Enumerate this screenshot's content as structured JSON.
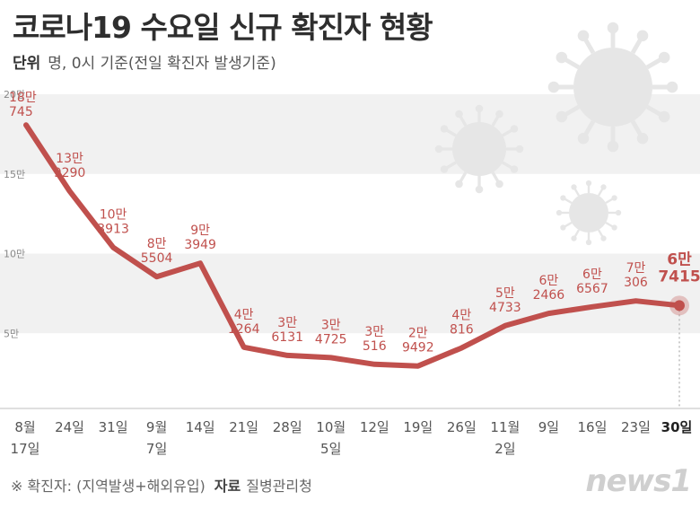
{
  "title": "코로나19 수요일 신규 확진자 현황",
  "unit": {
    "label": "단위",
    "text": "명, 0시 기준(전일 확진자 발생기준)"
  },
  "footer": {
    "note": "※ 확진자: (지역발생+해외유입)",
    "source_label": "자료",
    "source": "질병관리청"
  },
  "logo": "news1",
  "colors": {
    "line": "#c0504d",
    "last_label": "#c0504d",
    "label": "#c0504d",
    "band": "#f1f1f1",
    "virus": "#e6e6e6"
  },
  "chart_data": {
    "type": "line",
    "title": "코로나19 수요일 신규 확진자 현황",
    "ylim": [
      0,
      200000
    ],
    "yticks": [
      {
        "value": 50000,
        "label": "5만"
      },
      {
        "value": 100000,
        "label": "10만"
      },
      {
        "value": 150000,
        "label": "15만"
      },
      {
        "value": 200000,
        "label": "20만"
      }
    ],
    "categories": [
      {
        "l1": "8월",
        "l2": "17일"
      },
      {
        "l1": "24일",
        "l2": ""
      },
      {
        "l1": "31일",
        "l2": ""
      },
      {
        "l1": "9월",
        "l2": "7일"
      },
      {
        "l1": "14일",
        "l2": ""
      },
      {
        "l1": "21일",
        "l2": ""
      },
      {
        "l1": "28일",
        "l2": ""
      },
      {
        "l1": "10월",
        "l2": "5일"
      },
      {
        "l1": "12일",
        "l2": ""
      },
      {
        "l1": "19일",
        "l2": ""
      },
      {
        "l1": "26일",
        "l2": ""
      },
      {
        "l1": "11월",
        "l2": "2일"
      },
      {
        "l1": "9일",
        "l2": ""
      },
      {
        "l1": "16일",
        "l2": ""
      },
      {
        "l1": "23일",
        "l2": ""
      },
      {
        "l1": "30일",
        "l2": ""
      }
    ],
    "values": [
      180745,
      139290,
      103913,
      85504,
      93949,
      41264,
      36131,
      34725,
      30516,
      29492,
      40816,
      54733,
      62466,
      66567,
      70306,
      67415
    ],
    "labels": [
      {
        "l1": "18만",
        "l2": "745"
      },
      {
        "l1": "13만",
        "l2": "9290"
      },
      {
        "l1": "10만",
        "l2": "3913"
      },
      {
        "l1": "8만",
        "l2": "5504"
      },
      {
        "l1": "9만",
        "l2": "3949"
      },
      {
        "l1": "4만",
        "l2": "1264"
      },
      {
        "l1": "3만",
        "l2": "6131"
      },
      {
        "l1": "3만",
        "l2": "4725"
      },
      {
        "l1": "3만",
        "l2": "516"
      },
      {
        "l1": "2만",
        "l2": "9492"
      },
      {
        "l1": "4만",
        "l2": "816"
      },
      {
        "l1": "5만",
        "l2": "4733"
      },
      {
        "l1": "6만",
        "l2": "2466"
      },
      {
        "l1": "6만",
        "l2": "6567"
      },
      {
        "l1": "7만",
        "l2": "306"
      },
      {
        "l1": "6만",
        "l2": "7415"
      }
    ]
  }
}
